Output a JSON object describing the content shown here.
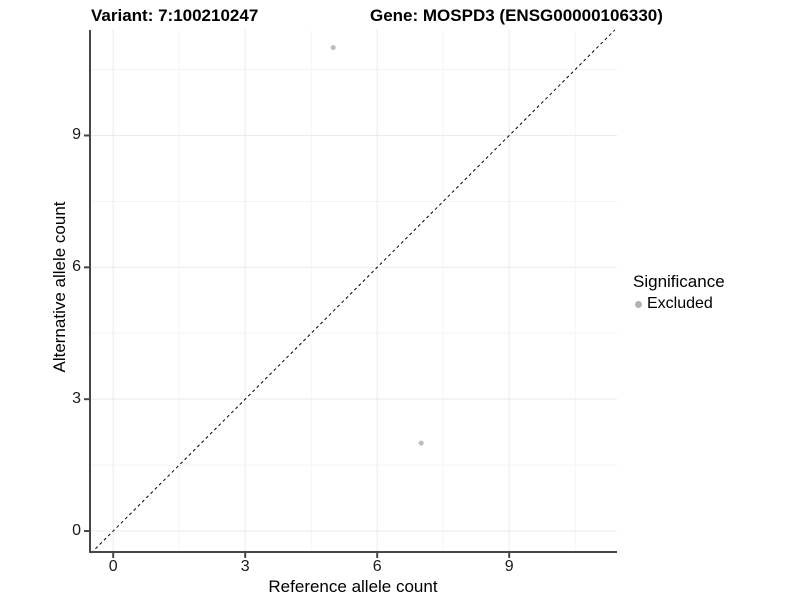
{
  "chart_data": {
    "type": "scatter",
    "title_left": "Variant: 7:100210247",
    "title_right": "Gene: MOSPD3 (ENSG00000106330)",
    "xlabel": "Reference allele count",
    "ylabel": "Alternative allele count",
    "xlim": [
      -0.55,
      11.45
    ],
    "ylim": [
      -0.5,
      11.4
    ],
    "x_ticks": [
      0,
      3,
      6,
      9
    ],
    "y_ticks": [
      0,
      3,
      6,
      9
    ],
    "x_minor_ticks": [
      1.5,
      4.5,
      7.5,
      10.5
    ],
    "y_minor_ticks": [
      1.5,
      4.5,
      7.5,
      10.5
    ],
    "grid": true,
    "series": [
      {
        "name": "Excluded",
        "x": [
          5,
          7
        ],
        "y": [
          11,
          2
        ],
        "color": "#bdbdbd",
        "point_radius": 2.5
      }
    ],
    "reference_line": {
      "type": "identity",
      "slope": 1,
      "intercept": 0,
      "style": "dashed",
      "color": "#000000"
    },
    "legend": {
      "title": "Significance",
      "position": "right",
      "items": [
        {
          "label": "Excluded",
          "color": "#b3b3b3"
        }
      ]
    },
    "colors": {
      "axis_line": "#474747",
      "grid_major": "#ebebeb",
      "grid_minor": "#f4f4f4",
      "tick_mark": "#474747",
      "tick_label": "#1a1a1a"
    }
  }
}
